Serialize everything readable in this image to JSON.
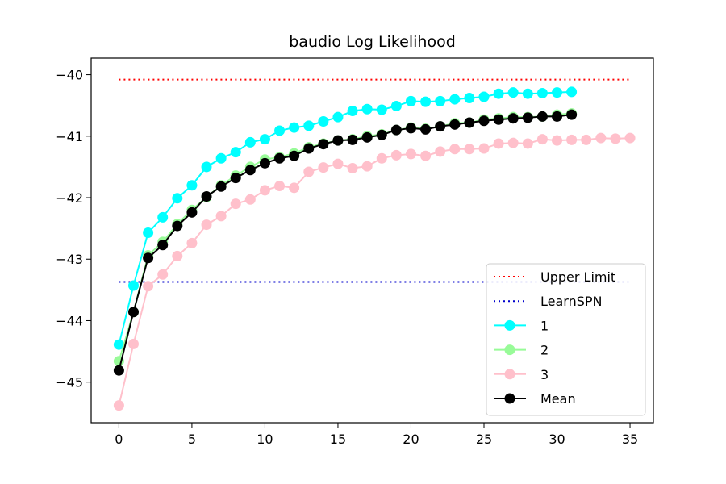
{
  "chart_data": {
    "type": "line",
    "title": "baudio Log Likelihood",
    "xlabel": "",
    "ylabel": "",
    "xlim": [
      -1.9,
      36.6
    ],
    "ylim": [
      -45.66,
      -39.73
    ],
    "x_ticks": [
      0,
      5,
      10,
      15,
      20,
      25,
      30,
      35
    ],
    "y_ticks": [
      -45,
      -44,
      -43,
      -42,
      -41,
      -40
    ],
    "grid": false,
    "legend_position": "lower right",
    "reference_lines": [
      {
        "name": "Upper Limit",
        "value": -40.08,
        "x_range": [
          0,
          35
        ],
        "color": "#ff0000",
        "style": "dotted"
      },
      {
        "name": "LearnSPN",
        "value": -43.37,
        "x_range": [
          0,
          35
        ],
        "color": "#0000cc",
        "style": "dotted"
      }
    ],
    "series": [
      {
        "name": "1",
        "color": "#00ffff",
        "x": [
          0,
          1,
          2,
          3,
          4,
          5,
          6,
          7,
          8,
          9,
          10,
          11,
          12,
          13,
          14,
          15,
          16,
          17,
          18,
          19,
          20,
          21,
          22,
          23,
          24,
          25,
          26,
          27,
          28,
          29,
          30,
          31
        ],
        "values": [
          -44.39,
          -43.43,
          -42.57,
          -42.32,
          -42.01,
          -41.8,
          -41.5,
          -41.36,
          -41.26,
          -41.1,
          -41.05,
          -40.91,
          -40.86,
          -40.83,
          -40.76,
          -40.69,
          -40.59,
          -40.56,
          -40.57,
          -40.51,
          -40.43,
          -40.44,
          -40.43,
          -40.4,
          -40.38,
          -40.36,
          -40.31,
          -40.29,
          -40.31,
          -40.3,
          -40.29,
          -40.28
        ]
      },
      {
        "name": "2",
        "color": "#98fb98",
        "x": [
          0,
          1,
          2,
          3,
          4,
          5,
          6,
          7,
          8,
          9,
          10,
          11,
          12,
          13,
          14,
          15,
          16,
          17,
          18,
          19,
          20,
          21,
          22,
          23,
          24,
          25,
          26,
          27,
          28,
          29,
          30,
          31
        ],
        "values": [
          -44.66,
          -43.86,
          -42.94,
          -42.72,
          -42.43,
          -42.2,
          -41.99,
          -41.8,
          -41.64,
          -41.5,
          -41.38,
          -41.34,
          -41.28,
          -41.18,
          -41.12,
          -41.07,
          -41.05,
          -41.0,
          -40.97,
          -40.9,
          -40.86,
          -40.88,
          -40.84,
          -40.79,
          -40.78,
          -40.73,
          -40.71,
          -40.69,
          -40.69,
          -40.68,
          -40.65,
          -40.63
        ]
      },
      {
        "name": "3",
        "color": "#ffc0cb",
        "x": [
          0,
          1,
          2,
          3,
          4,
          5,
          6,
          7,
          8,
          9,
          10,
          11,
          12,
          13,
          14,
          15,
          16,
          17,
          18,
          19,
          20,
          21,
          22,
          23,
          24,
          25,
          26,
          27,
          28,
          29,
          30,
          31,
          32,
          33,
          34,
          35
        ],
        "values": [
          -45.38,
          -44.38,
          -43.44,
          -43.25,
          -42.95,
          -42.74,
          -42.44,
          -42.3,
          -42.1,
          -42.03,
          -41.88,
          -41.81,
          -41.84,
          -41.58,
          -41.51,
          -41.45,
          -41.52,
          -41.49,
          -41.36,
          -41.31,
          -41.29,
          -41.32,
          -41.25,
          -41.21,
          -41.21,
          -41.2,
          -41.12,
          -41.11,
          -41.12,
          -41.05,
          -41.07,
          -41.06,
          -41.06,
          -41.03,
          -41.04,
          -41.03
        ]
      },
      {
        "name": "Mean",
        "color": "#000000",
        "x": [
          0,
          1,
          2,
          3,
          4,
          5,
          6,
          7,
          8,
          9,
          10,
          11,
          12,
          13,
          14,
          15,
          16,
          17,
          18,
          19,
          20,
          21,
          22,
          23,
          24,
          25,
          26,
          27,
          28,
          29,
          30,
          31
        ],
        "values": [
          -44.81,
          -43.86,
          -42.98,
          -42.77,
          -42.46,
          -42.24,
          -41.98,
          -41.82,
          -41.68,
          -41.55,
          -41.44,
          -41.36,
          -41.32,
          -41.2,
          -41.13,
          -41.07,
          -41.06,
          -41.02,
          -40.98,
          -40.9,
          -40.87,
          -40.89,
          -40.84,
          -40.81,
          -40.78,
          -40.75,
          -40.73,
          -40.71,
          -40.7,
          -40.68,
          -40.68,
          -40.65
        ]
      }
    ]
  }
}
